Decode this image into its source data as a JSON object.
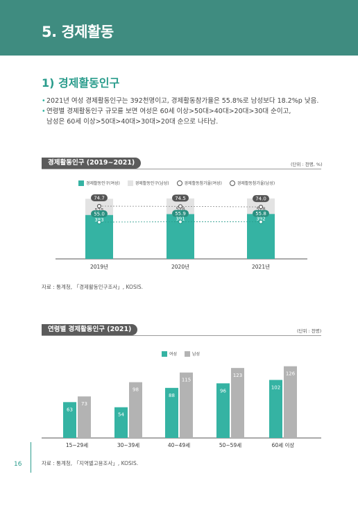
{
  "header": {
    "title": "5. 경제활동"
  },
  "section": {
    "title": "1) 경제활동인구"
  },
  "bullets": [
    {
      "lines": [
        "2021년 여성 경제활동인구는 392천명이고, 경제활동참가율은 55.8%로 남성보다 18.2%p 낮음."
      ]
    },
    {
      "lines": [
        "연령별 경제활동인구 규모를 보면 여성은 60세 이상>50대>40대>20대>30대 순이고,",
        "남성은 60세 이상>50대>40대>30대>20대 순으로 나타남."
      ]
    }
  ],
  "chart1": {
    "title": "경제활동인구 (2019~2021)",
    "unit": "(단위 : 천명, %)",
    "legend": [
      "경제활동인구(여성)",
      "경제활동인구(남성)",
      "경제활동참가율(여성)",
      "경제활동참가율(남성)"
    ],
    "source": "자료 : 통계청, 「경제활동인구조사」, KOSIS."
  },
  "chart2": {
    "title": "연령별 경제활동인구 (2021)",
    "unit": "(단위 : 천명)",
    "legend": [
      "여성",
      "남성"
    ],
    "source": "자료 : 통계청, 「지역별고용조사」, KOSIS."
  },
  "page": {
    "number": "16"
  },
  "colors": {
    "teal": "#35b3a3",
    "gray": "#b3b3b3",
    "light_gray": "#e3e3e3",
    "header": "#3f8c80"
  },
  "chart_data": [
    {
      "type": "bar",
      "title": "경제활동인구 (2019~2021)",
      "categories": [
        "2019년",
        "2020년",
        "2021년"
      ],
      "series": [
        {
          "name": "경제활동인구(여성)",
          "values": [
            383,
            391,
            392
          ]
        },
        {
          "name": "경제활동인구(남성)",
          "values": [
            525,
            528,
            528
          ]
        },
        {
          "name": "경제활동참가율(여성)",
          "values": [
            "55.0",
            "55.9",
            "55.8"
          ]
        },
        {
          "name": "경제활동참가율(남성)",
          "values": [
            "74.7",
            "74.5",
            "74.0"
          ]
        }
      ]
    },
    {
      "type": "bar",
      "title": "연령별 경제활동인구 (2021)",
      "categories": [
        "15~29세",
        "30~39세",
        "40~49세",
        "50~59세",
        "60세 이상"
      ],
      "series": [
        {
          "name": "여성",
          "values": [
            63,
            54,
            88,
            96,
            102
          ]
        },
        {
          "name": "남성",
          "values": [
            73,
            98,
            115,
            123,
            126
          ]
        }
      ]
    }
  ]
}
